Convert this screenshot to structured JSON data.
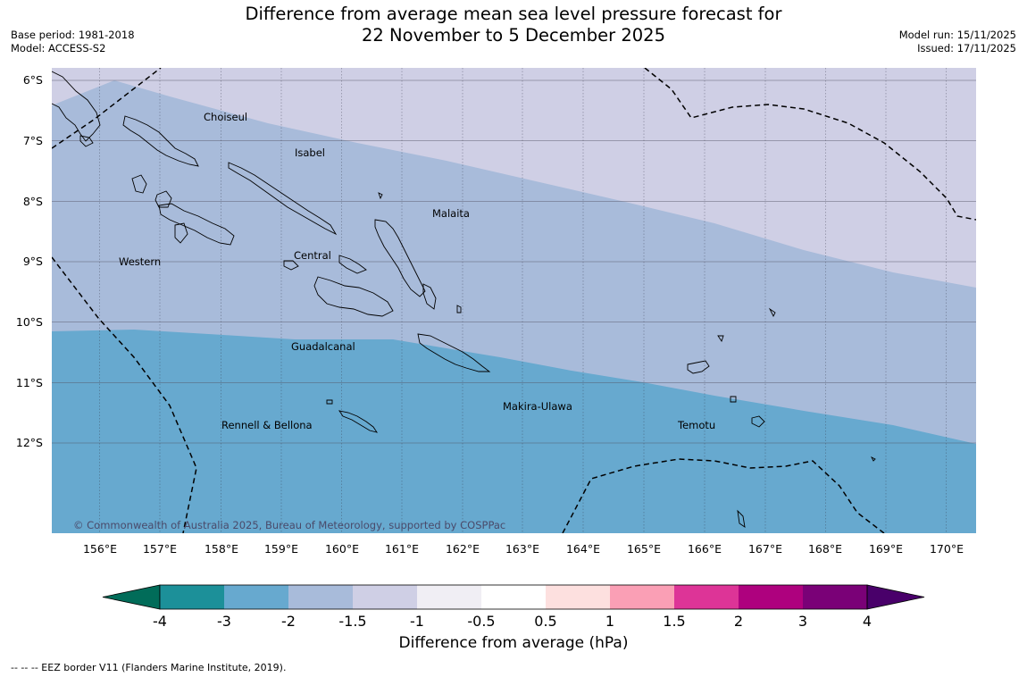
{
  "header": {
    "title_line1": "Difference from average mean sea level pressure forecast for",
    "title_line2": "22 November to 5 December 2025",
    "base_period": "Base period: 1981-2018",
    "model": "Model: ACCESS-S2",
    "model_run": "Model run: 15/11/2025",
    "issued": "Issued: 17/11/2025"
  },
  "map": {
    "lat_labels": [
      "6°S",
      "7°S",
      "8°S",
      "9°S",
      "10°S",
      "11°S",
      "12°S"
    ],
    "lon_labels": [
      "156°E",
      "157°E",
      "158°E",
      "159°E",
      "160°E",
      "161°E",
      "162°E",
      "163°E",
      "164°E",
      "165°E",
      "166°E",
      "167°E",
      "168°E",
      "169°E",
      "170°E"
    ],
    "provinces": [
      "Choiseul",
      "Isabel",
      "Malaita",
      "Western",
      "Central",
      "Guadalcanal",
      "Makira-Ulawa",
      "Rennell & Bellona",
      "Temotu"
    ],
    "copyright": "© Commonwealth of Australia 2025, Bureau of Meteorology, supported by COSPPac",
    "colors": {
      "band_minus3_minus2": "#67a9cf",
      "band_minus2_minus1_5": "#a8bbda",
      "band_minus1_5_minus1": "#cfcfe5"
    }
  },
  "colorbar": {
    "tick_labels": [
      "-4",
      "-3",
      "-2",
      "-1.5",
      "-1",
      "-0.5",
      "0.5",
      "1",
      "1.5",
      "2",
      "3",
      "4"
    ],
    "colors": [
      "#1c9099",
      "#67a9cf",
      "#a8bbda",
      "#cfcfe5",
      "#f0eef4",
      "#ffffff",
      "#fde0df",
      "#fa9fb5",
      "#dd3497",
      "#ae017e",
      "#7a0177"
    ],
    "extend_low_color": "#016c59",
    "extend_high_color": "#49006a",
    "title": "Difference from average (hPa)"
  },
  "footnote": "-- -- -- EEZ border V11 (Flanders Marine Institute, 2019)."
}
